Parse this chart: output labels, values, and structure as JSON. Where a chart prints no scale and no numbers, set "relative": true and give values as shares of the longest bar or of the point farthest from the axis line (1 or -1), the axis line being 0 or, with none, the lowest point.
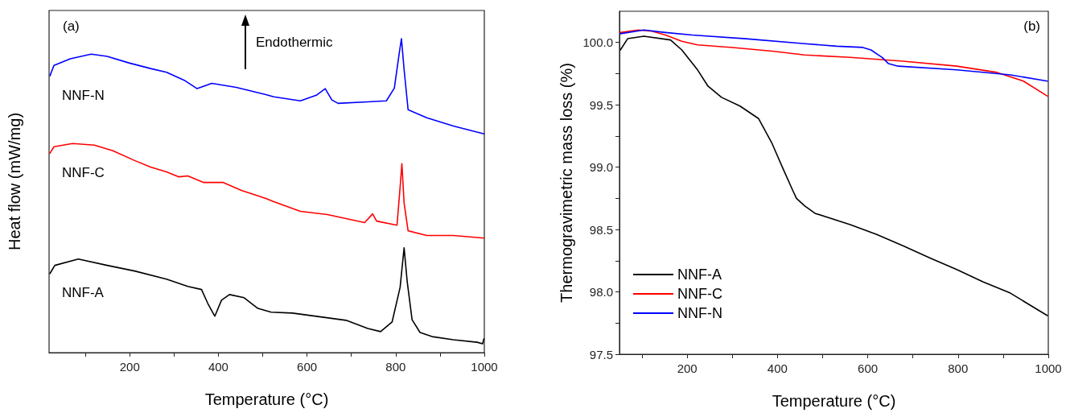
{
  "chart_data": [
    {
      "type": "line",
      "relative": true,
      "xlabel": "Temperature (°C)",
      "ylabel": "Heat flow (mW/mg)",
      "annotations": [
        "(a)",
        "Endothermic"
      ],
      "xlim": [
        18,
        1000
      ],
      "xticks": [
        {
          "value": 100,
          "label": null
        },
        200,
        {
          "value": 300,
          "label": null
        },
        400,
        {
          "value": 500,
          "label": null
        },
        600,
        {
          "value": 700,
          "label": null
        },
        800,
        {
          "value": 900,
          "label": null
        },
        1000
      ],
      "grid": false,
      "legend": false,
      "marker": "none",
      "line_style": "solid",
      "series": [
        {
          "name": "NNF-N",
          "color": "#0000ff",
          "x": [
            20,
            29,
            66,
            113,
            149,
            198,
            247,
            283,
            325,
            352,
            385,
            440,
            507,
            525,
            585,
            621,
            641,
            656,
            670,
            737,
            779,
            797,
            808,
            813,
            819,
            828,
            870,
            930,
            999
          ],
          "values": [
            0.882,
            0.915,
            0.936,
            0.951,
            0.944,
            0.923,
            0.905,
            0.893,
            0.866,
            0.841,
            0.858,
            0.845,
            0.822,
            0.815,
            0.802,
            0.82,
            0.841,
            0.805,
            0.794,
            0.799,
            0.802,
            0.843,
            0.954,
            1.0,
            0.902,
            0.774,
            0.748,
            0.722,
            0.697
          ]
        },
        {
          "name": "NNF-C",
          "color": "#ff0000",
          "x": [
            20,
            29,
            71,
            120,
            162,
            211,
            247,
            283,
            311,
            331,
            367,
            411,
            452,
            507,
            525,
            585,
            646,
            730,
            748,
            757,
            803,
            810,
            814,
            819,
            828,
            870,
            930,
            999
          ],
          "values": [
            0.635,
            0.656,
            0.666,
            0.661,
            0.643,
            0.612,
            0.591,
            0.576,
            0.56,
            0.563,
            0.542,
            0.542,
            0.517,
            0.491,
            0.481,
            0.45,
            0.44,
            0.414,
            0.442,
            0.419,
            0.406,
            0.527,
            0.602,
            0.476,
            0.388,
            0.373,
            0.373,
            0.365
          ]
        },
        {
          "name": "NNF-A",
          "color": "#000000",
          "x": [
            20,
            31,
            84,
            149,
            211,
            283,
            331,
            362,
            376,
            392,
            407,
            425,
            458,
            489,
            519,
            567,
            688,
            737,
            766,
            792,
            810,
            819,
            826,
            837,
            855,
            882,
            930,
            984,
            996,
            999
          ],
          "values": [
            0.252,
            0.278,
            0.298,
            0.278,
            0.26,
            0.234,
            0.211,
            0.201,
            0.157,
            0.116,
            0.167,
            0.185,
            0.175,
            0.141,
            0.129,
            0.126,
            0.103,
            0.077,
            0.067,
            0.098,
            0.208,
            0.334,
            0.226,
            0.105,
            0.064,
            0.051,
            0.041,
            0.033,
            0.028,
            0.044
          ]
        }
      ]
    },
    {
      "type": "line",
      "xlabel": "Temperature (°C)",
      "ylabel": "Thermogravimetric mass loss (%)",
      "annotations": [
        "(b)"
      ],
      "xlim": [
        50,
        1000
      ],
      "xticks": [
        {
          "value": 100,
          "label": null
        },
        200,
        {
          "value": 300,
          "label": null
        },
        400,
        {
          "value": 500,
          "label": null
        },
        600,
        {
          "value": 700,
          "label": null
        },
        800,
        {
          "value": 900,
          "label": null
        },
        1000
      ],
      "ylim": [
        97.5,
        100.25
      ],
      "yticks": [
        97.5,
        {
          "value": 97.75,
          "label": null
        },
        {
          "value": 98,
          "label": "98.0"
        },
        {
          "value": 98.25,
          "label": null
        },
        98.5,
        {
          "value": 98.75,
          "label": null
        },
        {
          "value": 99,
          "label": "99.0"
        },
        {
          "value": 99.25,
          "label": null
        },
        99.5,
        {
          "value": 99.75,
          "label": null
        },
        {
          "value": 100,
          "label": "100.0"
        }
      ],
      "grid": false,
      "legend": "bottom left",
      "marker": "none",
      "line_style": "solid",
      "series": [
        {
          "name": "NNF-A",
          "color": "#000000",
          "x": [
            52,
            68,
            104,
            163,
            188,
            223,
            246,
            276,
            317,
            358,
            388,
            412,
            433,
            442,
            460,
            483,
            561,
            620,
            678,
            739,
            797,
            856,
            916,
            975,
            998
          ],
          "values": [
            99.94,
            100.03,
            100.05,
            100.02,
            99.94,
            99.78,
            99.65,
            99.56,
            99.49,
            99.39,
            99.19,
            98.99,
            98.82,
            98.75,
            98.69,
            98.63,
            98.54,
            98.46,
            98.37,
            98.27,
            98.18,
            98.08,
            97.99,
            97.86,
            97.81
          ]
        },
        {
          "name": "NNF-C",
          "color": "#ff0000",
          "x": [
            52,
            92,
            122,
            152,
            188,
            223,
            300,
            388,
            460,
            561,
            678,
            797,
            886,
            945,
            998
          ],
          "values": [
            100.08,
            100.1,
            100.09,
            100.06,
            100.01,
            99.98,
            99.96,
            99.93,
            99.9,
            99.88,
            99.85,
            99.81,
            99.76,
            99.69,
            99.57
          ]
        },
        {
          "name": "NNF-N",
          "color": "#0000ff",
          "x": [
            52,
            104,
            152,
            211,
            330,
            460,
            531,
            589,
            607,
            632,
            646,
            667,
            797,
            916,
            998
          ],
          "values": [
            100.07,
            100.1,
            100.08,
            100.06,
            100.03,
            99.99,
            99.97,
            99.96,
            99.94,
            99.88,
            99.83,
            99.81,
            99.78,
            99.74,
            99.69
          ]
        }
      ]
    }
  ]
}
